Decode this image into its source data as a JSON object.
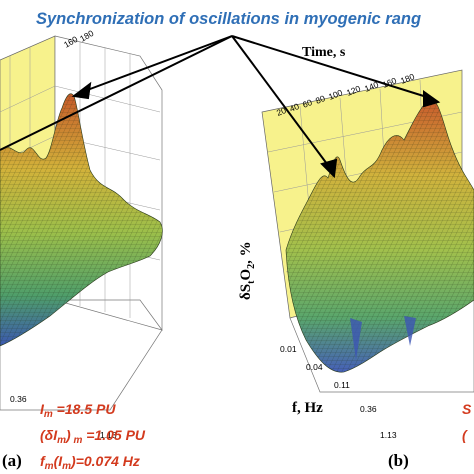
{
  "title": "Synchronization of oscillations in myogenic rang",
  "panel_a": {
    "label": "(a)",
    "time_ticks": [
      "160",
      "180"
    ],
    "f_ticks": [
      "0.36",
      "1.13"
    ],
    "annotation": {
      "line1": "I",
      "line1_sub": "m",
      "line1_val": " =18.5 PU",
      "line2": "(δI",
      "line2_sub": "m",
      "line2_mid": ")",
      "line2_sub2": " m",
      "line2_val": " =1.05 PU",
      "line3": "f",
      "line3_sub": "m",
      "line3_mid": "(I",
      "line3_sub2": "m",
      "line3_val": ")=0.074 Hz"
    }
  },
  "panel_b": {
    "label": "(b)",
    "time_title": "Time, s",
    "time_ticks": [
      "20",
      "40",
      "60",
      "80",
      "100",
      "120",
      "140",
      "160",
      "180"
    ],
    "z_label_delta": "δS",
    "z_label_sub": "t",
    "z_label_o": "O",
    "z_label_sub2": "2",
    "z_label_unit": ", %",
    "f_label": "f, Hz",
    "f_ticks": [
      "0.01",
      "0.04",
      "0.11",
      "0.36",
      "1.13"
    ],
    "annotation_fragment": [
      "S",
      "("
    ]
  },
  "colors": {
    "title": "#2f6fb6",
    "annotation": "#d33a1e",
    "back_wall": "#f7f28c"
  }
}
